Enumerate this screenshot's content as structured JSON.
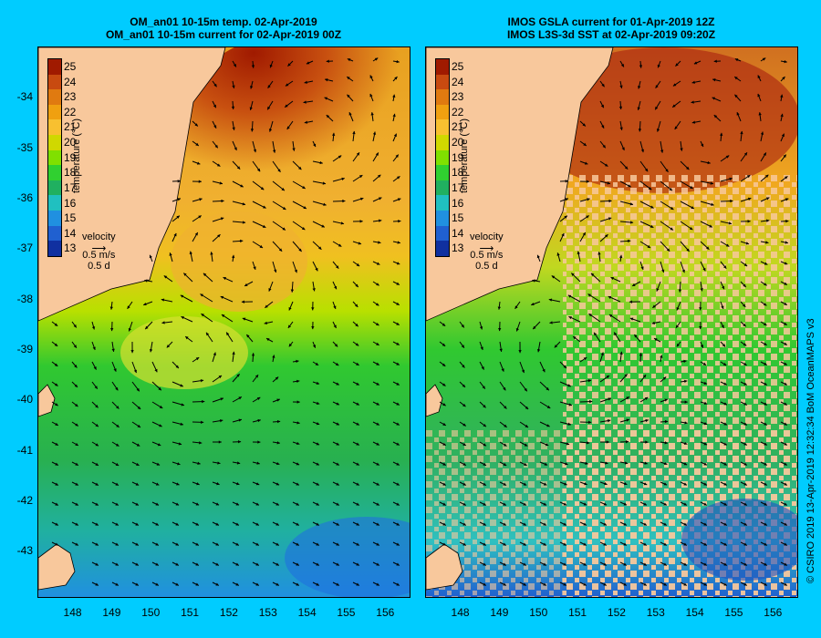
{
  "left": {
    "title1": "OM_an01 10-15m temp. 02-Apr-2019",
    "title2": "OM_an01 10-15m current for 02-Apr-2019 00Z"
  },
  "right": {
    "title1": "IMOS GSLA current for 01-Apr-2019 12Z",
    "title2": "IMOS L3S-3d SST at 02-Apr-2019 09:20Z"
  },
  "colorbar": {
    "label": "temperature (°C)",
    "ticks": [
      "25",
      "24",
      "23",
      "22",
      "21",
      "20",
      "19",
      "18",
      "17",
      "16",
      "15",
      "14",
      "13"
    ],
    "colors": [
      "#a01a00",
      "#c84a10",
      "#e07a10",
      "#f0a010",
      "#f8c030",
      "#d0d800",
      "#80e000",
      "#30d030",
      "#20b060",
      "#20c0c0",
      "#2090e0",
      "#2060d0",
      "#1030a0"
    ]
  },
  "velocity": {
    "title": "velocity",
    "speed": "0.5 m/s",
    "time": "0.5 d"
  },
  "map_data": {
    "lat_ticks": [
      "-34",
      "-35",
      "-36",
      "-37",
      "-38",
      "-39",
      "-40",
      "-41",
      "-42",
      "-43"
    ],
    "lon_ticks": [
      "148",
      "149",
      "150",
      "151",
      "152",
      "153",
      "154",
      "155",
      "156"
    ],
    "lon_range": [
      147.1,
      156.6
    ],
    "lat_range": [
      -43.9,
      -33.0
    ]
  },
  "credit": "© CSIRO 2019   13-Apr-2019 12:32:34 BoM OceanMAPS v3",
  "colors": {
    "background": "#00ccff",
    "land": "#f8c89c"
  }
}
